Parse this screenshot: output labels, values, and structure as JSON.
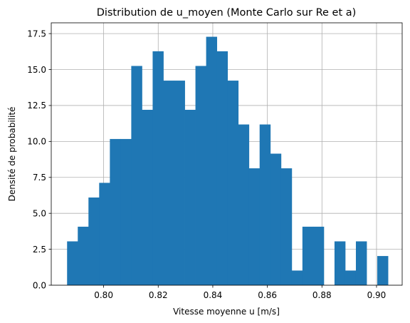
{
  "chart_data": {
    "type": "bar",
    "title": "Distribution de u_moyen (Monte Carlo sur Re et a)",
    "xlabel": "Vitesse moyenne u [m/s]",
    "ylabel": "Densité de probabilité",
    "xlim": [
      0.7808,
      0.9094
    ],
    "ylim": [
      0,
      18.25
    ],
    "xticks": [
      0.8,
      0.82,
      0.84,
      0.86,
      0.88,
      0.9
    ],
    "xtick_labels": [
      "0.80",
      "0.82",
      "0.84",
      "0.86",
      "0.88",
      "0.90"
    ],
    "yticks": [
      0,
      2.5,
      5,
      7.5,
      10,
      12.5,
      15,
      17.5
    ],
    "ytick_labels": [
      "0.0",
      "2.5",
      "5.0",
      "7.5",
      "10.0",
      "12.5",
      "15.0",
      "17.5"
    ],
    "grid": true,
    "color": "#1f77b4",
    "bin_start": 0.7866,
    "bin_width": 0.00392,
    "values": [
      3.05,
      4.07,
      6.1,
      7.12,
      10.17,
      10.17,
      15.25,
      12.2,
      16.27,
      14.23,
      14.23,
      12.2,
      15.25,
      17.28,
      16.27,
      14.23,
      11.18,
      8.13,
      11.18,
      9.15,
      8.13,
      1.02,
      4.07,
      4.07,
      0,
      3.05,
      1.02,
      3.05,
      0,
      2.03
    ]
  }
}
